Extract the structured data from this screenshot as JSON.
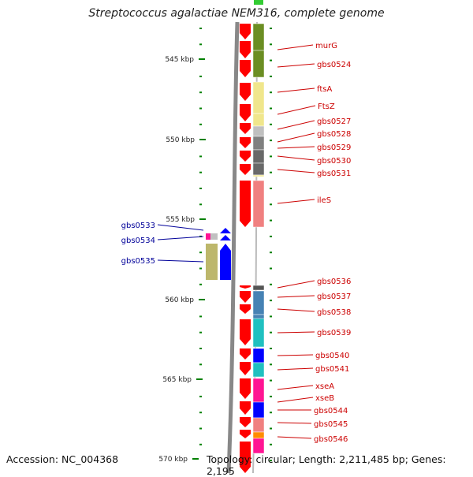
{
  "title": "Streptococcus agalactiae NEM316, complete genome",
  "footer": {
    "accession": "Accession: NC_004368",
    "topology": "Topology: circular; Length: 2,211,485 bp; Genes: 2,195"
  },
  "colors": {
    "forward_arrow": "#ff0000",
    "reverse_arrow": "#0000ff",
    "tick": "#008000",
    "label_right": "#cc0000",
    "label_left": "#000099",
    "backbone": "#888888"
  },
  "scale": {
    "unit": "kbp",
    "labels": [
      "545 kbp",
      "550 kbp",
      "555 kbp",
      "560 kbp",
      "565 kbp",
      "570 kbp"
    ]
  },
  "genes_right": [
    {
      "name": "murG",
      "color": "#6b8e23"
    },
    {
      "name": "gbs0524",
      "color": "#6b8e23"
    },
    {
      "name": "ftsA",
      "color": "#f0e68c"
    },
    {
      "name": "FtsZ",
      "color": "#f0e68c"
    },
    {
      "name": "gbs0527",
      "color": "#c0c0c0"
    },
    {
      "name": "gbs0528",
      "color": "#808080"
    },
    {
      "name": "gbs0529",
      "color": "#696969"
    },
    {
      "name": "gbs0530",
      "color": "#696969"
    },
    {
      "name": "gbs0531",
      "color": "#f0e68c"
    },
    {
      "name": "ileS",
      "color": "#f08080"
    },
    {
      "name": "gbs0536",
      "color": "#555555"
    },
    {
      "name": "gbs0537",
      "color": "#4682b4"
    },
    {
      "name": "gbs0538",
      "color": "#4682b4"
    },
    {
      "name": "gbs0539",
      "color": "#20c0c0"
    },
    {
      "name": "gbs0540",
      "color": "#0000ff"
    },
    {
      "name": "gbs0541",
      "color": "#20c0c0"
    },
    {
      "name": "xseA",
      "color": "#ff1493"
    },
    {
      "name": "xseB",
      "color": "#ff1493"
    },
    {
      "name": "gbs0544",
      "color": "#0000ff"
    },
    {
      "name": "gbs0545",
      "color": "#f08080"
    },
    {
      "name": "gbs0546",
      "color": "#ff8c00"
    }
  ],
  "genes_left": [
    {
      "name": "gbs0533",
      "color": "#ff1493"
    },
    {
      "name": "gbs0534",
      "color": "#c0c0c0"
    },
    {
      "name": "gbs0535",
      "color": "#bdb76b"
    }
  ]
}
